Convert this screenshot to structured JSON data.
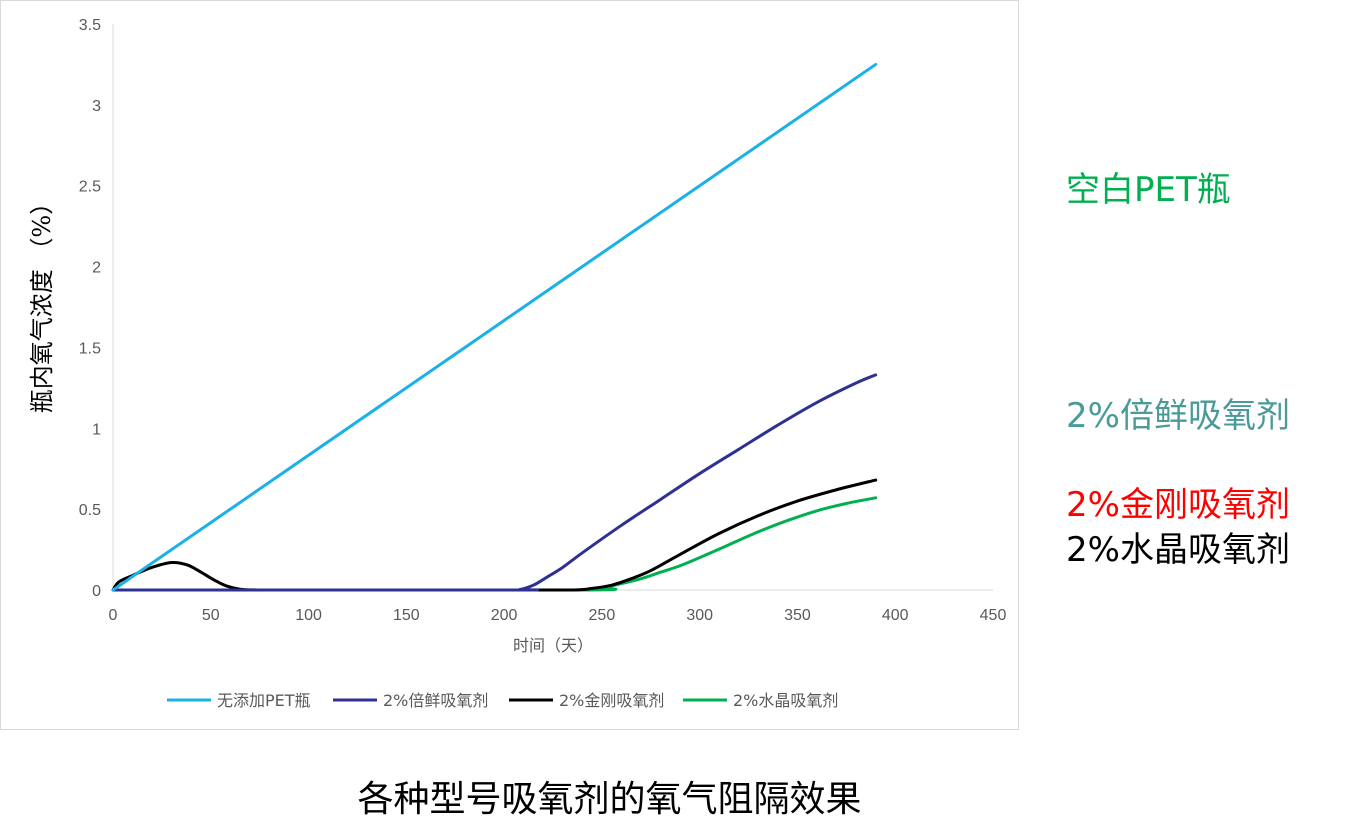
{
  "chart_data": {
    "type": "line",
    "xlabel": "时间（天）",
    "ylabel": "瓶内氧气浓度 （%）",
    "xlim": [
      0,
      450
    ],
    "ylim": [
      0,
      3.5
    ],
    "x_ticks": [
      "0",
      "50",
      "100",
      "150",
      "200",
      "250",
      "300",
      "350",
      "400",
      "450"
    ],
    "y_ticks": [
      "0",
      "0.5",
      "1",
      "1.5",
      "2",
      "2.5",
      "3",
      "3.5"
    ],
    "grid": false,
    "legend_position": "bottom",
    "series": [
      {
        "name": "无添加PET瓶",
        "color": "#1ab0e8",
        "x": [
          0,
          390
        ],
        "y": [
          0,
          3.25
        ]
      },
      {
        "name": "2%倍鲜吸氧剂",
        "color": "#2e3192",
        "x": [
          0,
          200,
          208,
          215,
          222,
          230,
          240,
          260,
          280,
          300,
          320,
          340,
          360,
          380,
          390
        ],
        "y": [
          0,
          0,
          0.003,
          0.03,
          0.08,
          0.14,
          0.23,
          0.4,
          0.56,
          0.72,
          0.87,
          1.02,
          1.16,
          1.28,
          1.33
        ]
      },
      {
        "name": "2%金刚吸氧剂",
        "color": "#000000",
        "x": [
          0,
          3,
          10,
          20,
          30,
          38,
          45,
          52,
          58,
          65,
          75,
          100,
          200,
          235,
          245,
          255,
          265,
          275,
          290,
          310,
          330,
          350,
          370,
          390
        ],
        "y": [
          0,
          0.05,
          0.09,
          0.14,
          0.17,
          0.155,
          0.11,
          0.06,
          0.025,
          0.005,
          0,
          0,
          0,
          0,
          0.01,
          0.03,
          0.07,
          0.12,
          0.22,
          0.35,
          0.46,
          0.55,
          0.62,
          0.68
        ]
      },
      {
        "name": "2%水晶吸氧剂",
        "color": "#00b050",
        "x": [
          0,
          235,
          250,
          260,
          270,
          280,
          290,
          300,
          315,
          330,
          345,
          360,
          375,
          390
        ],
        "y": [
          0,
          0,
          0.015,
          0.04,
          0.07,
          0.11,
          0.15,
          0.2,
          0.28,
          0.36,
          0.43,
          0.49,
          0.535,
          0.57
        ]
      }
    ]
  },
  "side_labels": [
    {
      "text": "空白PET瓶",
      "color": "#00b050"
    },
    {
      "text": "2%倍鲜吸氧剂",
      "color": "#4a9a9a"
    },
    {
      "text": "2%金刚吸氧剂",
      "color": "#ff0000"
    },
    {
      "text": "2%水晶吸氧剂",
      "color": "#000000"
    }
  ],
  "caption": "各种型号吸氧剂的氧气阻隔效果"
}
